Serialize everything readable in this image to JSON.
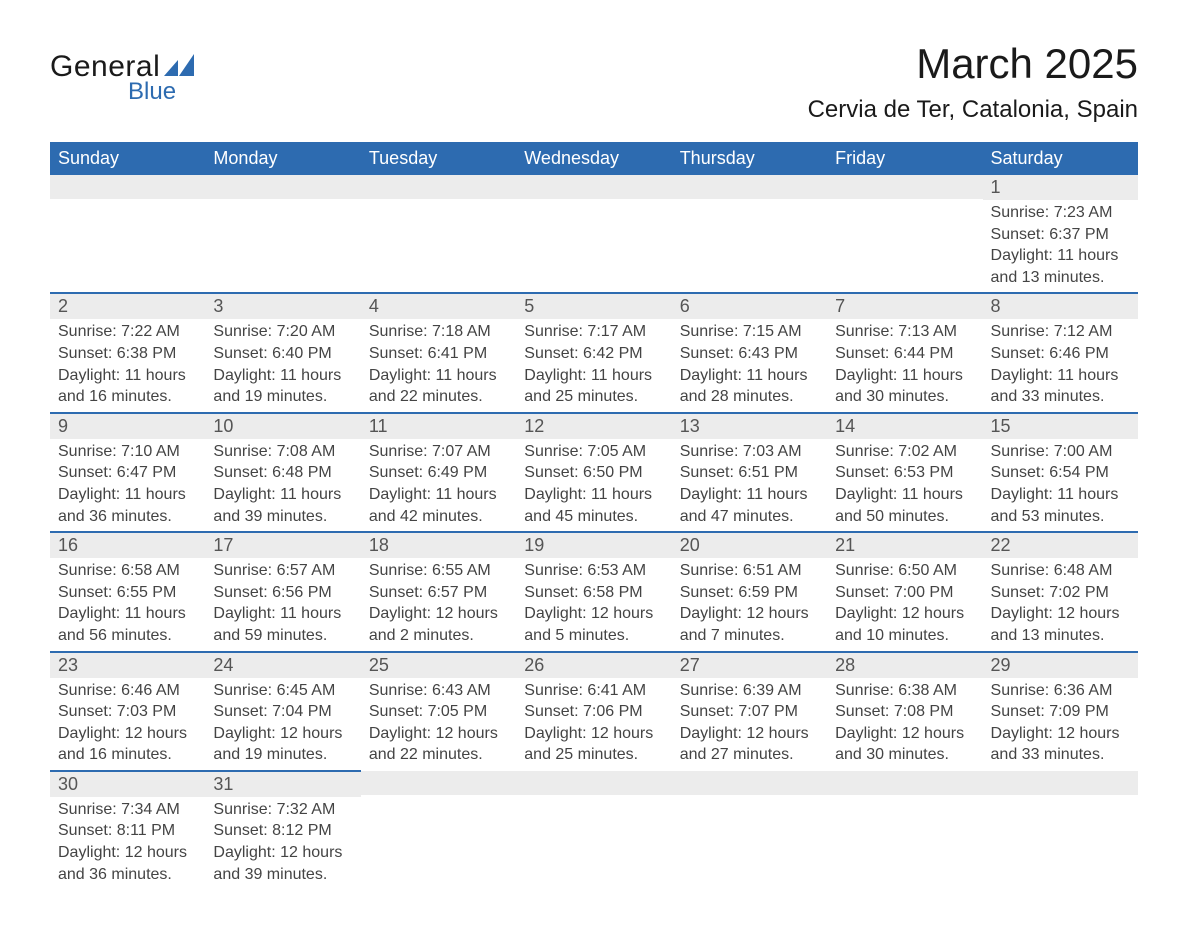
{
  "logo": {
    "text1": "General",
    "text2": "Blue",
    "accent": "#2d6bb0"
  },
  "title": "March 2025",
  "location": "Cervia de Ter, Catalonia, Spain",
  "colors": {
    "header_bg": "#2d6bb0",
    "header_text": "#ffffff",
    "row_divider": "#2d6bb0",
    "daynum_bg": "#ececec",
    "body_text": "#444444"
  },
  "fonts": {
    "title_size_pt": 32,
    "location_size_pt": 18,
    "header_size_pt": 14,
    "body_size_pt": 12
  },
  "day_headers": [
    "Sunday",
    "Monday",
    "Tuesday",
    "Wednesday",
    "Thursday",
    "Friday",
    "Saturday"
  ],
  "labels": {
    "sunrise": "Sunrise:",
    "sunset": "Sunset:",
    "daylight": "Daylight:"
  },
  "weeks": [
    [
      {
        "day": "",
        "sunrise": "",
        "sunset": "",
        "daylight": ""
      },
      {
        "day": "",
        "sunrise": "",
        "sunset": "",
        "daylight": ""
      },
      {
        "day": "",
        "sunrise": "",
        "sunset": "",
        "daylight": ""
      },
      {
        "day": "",
        "sunrise": "",
        "sunset": "",
        "daylight": ""
      },
      {
        "day": "",
        "sunrise": "",
        "sunset": "",
        "daylight": ""
      },
      {
        "day": "",
        "sunrise": "",
        "sunset": "",
        "daylight": ""
      },
      {
        "day": "1",
        "sunrise": "7:23 AM",
        "sunset": "6:37 PM",
        "daylight": "11 hours and 13 minutes."
      }
    ],
    [
      {
        "day": "2",
        "sunrise": "7:22 AM",
        "sunset": "6:38 PM",
        "daylight": "11 hours and 16 minutes."
      },
      {
        "day": "3",
        "sunrise": "7:20 AM",
        "sunset": "6:40 PM",
        "daylight": "11 hours and 19 minutes."
      },
      {
        "day": "4",
        "sunrise": "7:18 AM",
        "sunset": "6:41 PM",
        "daylight": "11 hours and 22 minutes."
      },
      {
        "day": "5",
        "sunrise": "7:17 AM",
        "sunset": "6:42 PM",
        "daylight": "11 hours and 25 minutes."
      },
      {
        "day": "6",
        "sunrise": "7:15 AM",
        "sunset": "6:43 PM",
        "daylight": "11 hours and 28 minutes."
      },
      {
        "day": "7",
        "sunrise": "7:13 AM",
        "sunset": "6:44 PM",
        "daylight": "11 hours and 30 minutes."
      },
      {
        "day": "8",
        "sunrise": "7:12 AM",
        "sunset": "6:46 PM",
        "daylight": "11 hours and 33 minutes."
      }
    ],
    [
      {
        "day": "9",
        "sunrise": "7:10 AM",
        "sunset": "6:47 PM",
        "daylight": "11 hours and 36 minutes."
      },
      {
        "day": "10",
        "sunrise": "7:08 AM",
        "sunset": "6:48 PM",
        "daylight": "11 hours and 39 minutes."
      },
      {
        "day": "11",
        "sunrise": "7:07 AM",
        "sunset": "6:49 PM",
        "daylight": "11 hours and 42 minutes."
      },
      {
        "day": "12",
        "sunrise": "7:05 AM",
        "sunset": "6:50 PM",
        "daylight": "11 hours and 45 minutes."
      },
      {
        "day": "13",
        "sunrise": "7:03 AM",
        "sunset": "6:51 PM",
        "daylight": "11 hours and 47 minutes."
      },
      {
        "day": "14",
        "sunrise": "7:02 AM",
        "sunset": "6:53 PM",
        "daylight": "11 hours and 50 minutes."
      },
      {
        "day": "15",
        "sunrise": "7:00 AM",
        "sunset": "6:54 PM",
        "daylight": "11 hours and 53 minutes."
      }
    ],
    [
      {
        "day": "16",
        "sunrise": "6:58 AM",
        "sunset": "6:55 PM",
        "daylight": "11 hours and 56 minutes."
      },
      {
        "day": "17",
        "sunrise": "6:57 AM",
        "sunset": "6:56 PM",
        "daylight": "11 hours and 59 minutes."
      },
      {
        "day": "18",
        "sunrise": "6:55 AM",
        "sunset": "6:57 PM",
        "daylight": "12 hours and 2 minutes."
      },
      {
        "day": "19",
        "sunrise": "6:53 AM",
        "sunset": "6:58 PM",
        "daylight": "12 hours and 5 minutes."
      },
      {
        "day": "20",
        "sunrise": "6:51 AM",
        "sunset": "6:59 PM",
        "daylight": "12 hours and 7 minutes."
      },
      {
        "day": "21",
        "sunrise": "6:50 AM",
        "sunset": "7:00 PM",
        "daylight": "12 hours and 10 minutes."
      },
      {
        "day": "22",
        "sunrise": "6:48 AM",
        "sunset": "7:02 PM",
        "daylight": "12 hours and 13 minutes."
      }
    ],
    [
      {
        "day": "23",
        "sunrise": "6:46 AM",
        "sunset": "7:03 PM",
        "daylight": "12 hours and 16 minutes."
      },
      {
        "day": "24",
        "sunrise": "6:45 AM",
        "sunset": "7:04 PM",
        "daylight": "12 hours and 19 minutes."
      },
      {
        "day": "25",
        "sunrise": "6:43 AM",
        "sunset": "7:05 PM",
        "daylight": "12 hours and 22 minutes."
      },
      {
        "day": "26",
        "sunrise": "6:41 AM",
        "sunset": "7:06 PM",
        "daylight": "12 hours and 25 minutes."
      },
      {
        "day": "27",
        "sunrise": "6:39 AM",
        "sunset": "7:07 PM",
        "daylight": "12 hours and 27 minutes."
      },
      {
        "day": "28",
        "sunrise": "6:38 AM",
        "sunset": "7:08 PM",
        "daylight": "12 hours and 30 minutes."
      },
      {
        "day": "29",
        "sunrise": "6:36 AM",
        "sunset": "7:09 PM",
        "daylight": "12 hours and 33 minutes."
      }
    ],
    [
      {
        "day": "30",
        "sunrise": "7:34 AM",
        "sunset": "8:11 PM",
        "daylight": "12 hours and 36 minutes."
      },
      {
        "day": "31",
        "sunrise": "7:32 AM",
        "sunset": "8:12 PM",
        "daylight": "12 hours and 39 minutes."
      },
      {
        "day": "",
        "sunrise": "",
        "sunset": "",
        "daylight": ""
      },
      {
        "day": "",
        "sunrise": "",
        "sunset": "",
        "daylight": ""
      },
      {
        "day": "",
        "sunrise": "",
        "sunset": "",
        "daylight": ""
      },
      {
        "day": "",
        "sunrise": "",
        "sunset": "",
        "daylight": ""
      },
      {
        "day": "",
        "sunrise": "",
        "sunset": "",
        "daylight": ""
      }
    ]
  ]
}
